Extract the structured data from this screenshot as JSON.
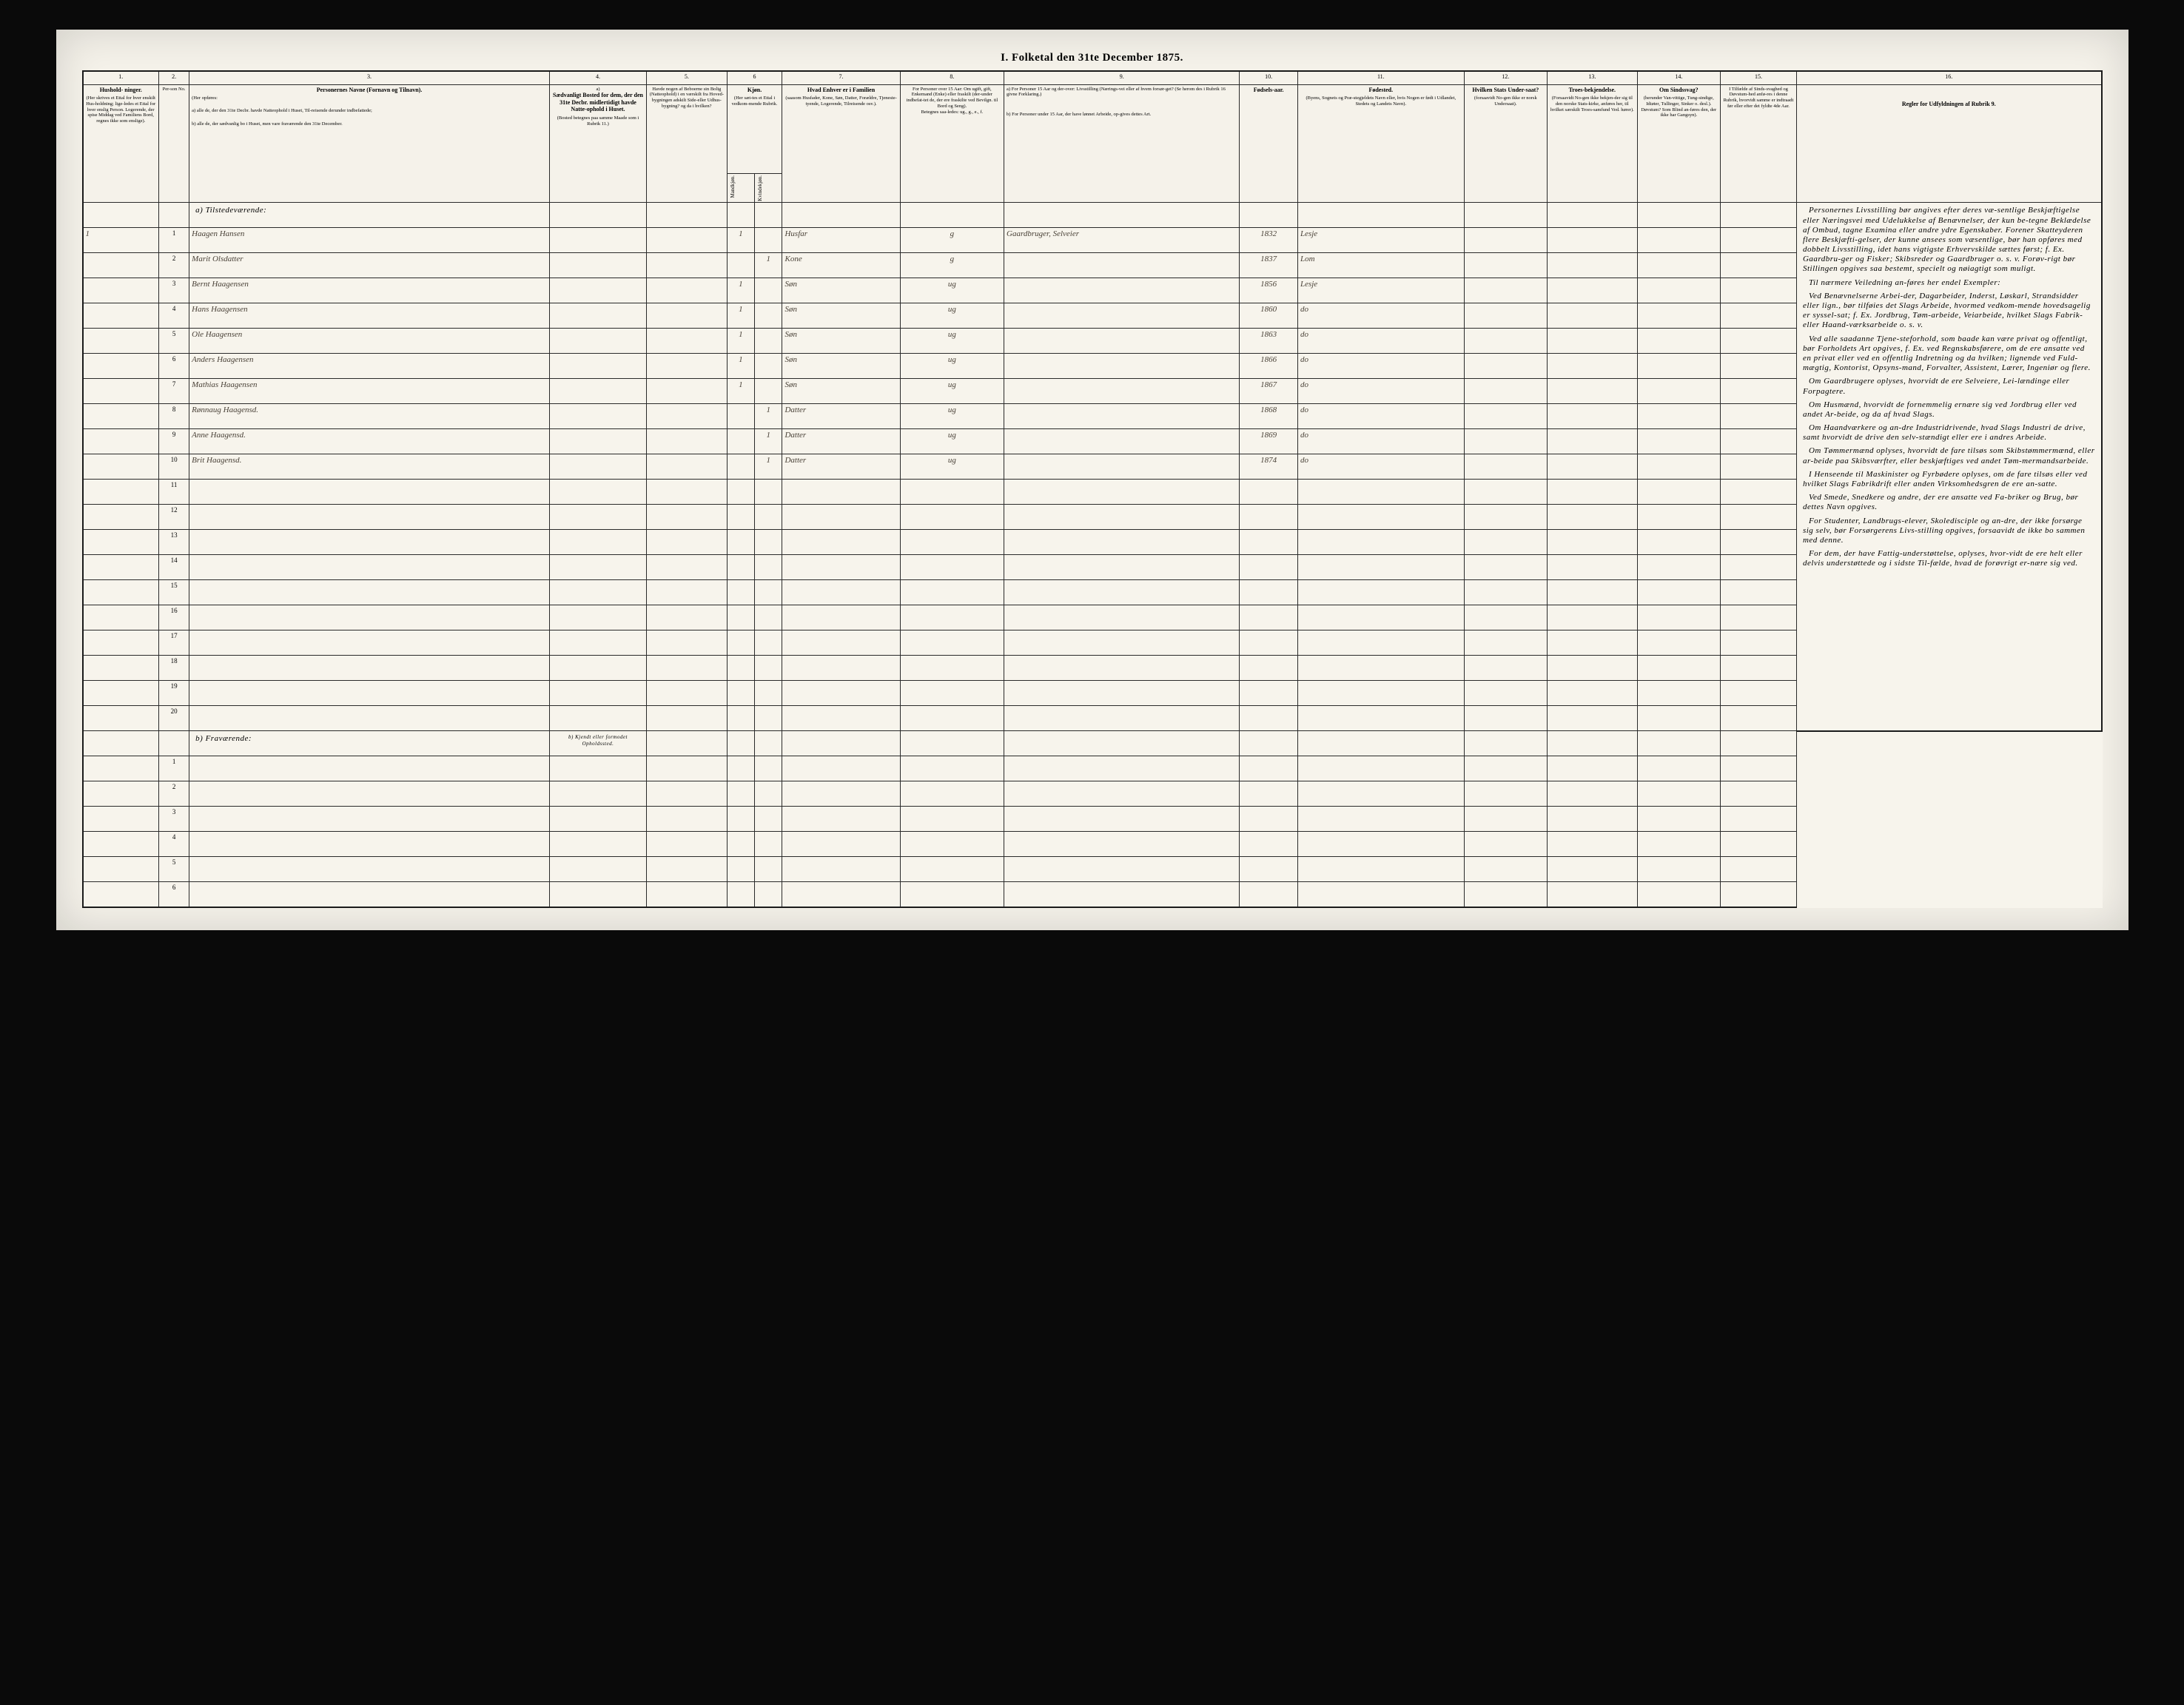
{
  "title": "I.  Folketal den 31te December 1875.",
  "columns": {
    "c1": {
      "num": "1.",
      "head": "Hushold-\nninger.",
      "sub": "(Her skrives et Ettal for hver enskilt Hus-holdning; lige-ledes et Ettal for hver enslig Person. Logerende, der spise Middag ved Familiens Bord, regnes ikke som enslige)."
    },
    "c2": {
      "num": "2.",
      "head": "",
      "sub": "Per-son No."
    },
    "c3": {
      "num": "3.",
      "head": "Personernes Navne (Fornavn og Tilnavn).",
      "sub_a": "a) alle de, der den 31te Decbr. havde Natteophold i Huset, Til-reisende derunder indbefattede;",
      "sub_b": "b) alle de, der sædvanlig bo i Huset, men vare fraværende den 31te December.",
      "sub_intro": "(Her opføres:"
    },
    "c4": {
      "num": "4.",
      "head": "Sædvanligt Bosted for dem, der den 31te Decbr. midlertidigt havde Natte-ophold i Huset.",
      "sub": "(Bosted betegnes paa samme Maade som i Rubrik 11.)",
      "sub_b": "b) Kjendt eller formodet Opholdssted."
    },
    "c5": {
      "num": "5.",
      "head": "Havde nogen af Beboerne sin Bolig (Natteophold) i en værskilt fra Hoved-bygningen adskilt Side-eller Udhus-bygning? og da i hvilken?"
    },
    "c6": {
      "num": "6",
      "head": "Kjøn.",
      "sub": "(Her sæt-tes et Ettal i vedkom-mende Rubrik."
    },
    "c6a": "Mandkjøn.",
    "c6b": "Kvindekjøn.",
    "c7": {
      "num": "7.",
      "head": "Hvad Enhver er i Familien",
      "sub": "(saasom Husfader, Kone, Søn, Datter, Forældre, Tjeneste-tyende, Logerende, Tilreisende osv.)."
    },
    "c8": {
      "num": "8.",
      "head": "For Personer over 15 Aar: Om ugift, gift, Enkemand (Enke) eller fraskilt (der-under indbefat-tet de, der ere fraskilte ved Bevilgn. til Bord og Seng).",
      "sub": "Betegnes saa-ledes: ug., g., e., f."
    },
    "c9": {
      "num": "9.",
      "head_a": "a) For Personer 15 Aar og der-over: Livsstilling (Nærings-vei eller af hvem forsør-get? (Se herom des i Rubrik 16 givne Forklaring.)",
      "head_b": "b) For Personer under 15 Aar, der have lønnet Arbeide, op-gives dettes Art."
    },
    "c10": {
      "num": "10.",
      "head": "Fødsels-aar."
    },
    "c11": {
      "num": "11.",
      "head": "Fødested.",
      "sub": "(Byens, Sognets og Præ-stegjeldets Navn eller, hvis Nogen er født i Udlandet, Stedets og Landets Navn)."
    },
    "c12": {
      "num": "12.",
      "head": "Hvilken Stats Under-saat?",
      "sub": "(forsaavidt No-gen ikke er norsk Undersaat)."
    },
    "c13": {
      "num": "13.",
      "head": "Troes-bekjendelse.",
      "sub": "(Forsaavidt No-gen ikke bekjen-der sig til den norske Stats-kirke, anføres her, til hvilket særskilt Troes-samfund Ved. hører)."
    },
    "c14": {
      "num": "14.",
      "head": "Om Sindssvag?",
      "sub": "(herunder Van-vittige, Tung-sindige, Idiøter, Tullinger, Sinker o. desl.). Døvstum? Som Blind an-føres den, der ikke har Gangsyn)."
    },
    "c15": {
      "num": "15.",
      "head": "I Tilfælde af Sinds-svaghed og Døvstum-hed anfø-res i denne Rubrik, hvorvidt samme er indtraadt før eller efter det fyldte 4de Aar."
    },
    "c16": {
      "num": "16.",
      "head": "Regler for Udfyldningen af Rubrik 9."
    }
  },
  "section_a": "a) Tilstedeværende:",
  "section_b": "b) Fraværende:",
  "rows_a": [
    {
      "n": "1",
      "hh": "1",
      "name": "Haagen Hansen",
      "m": "1",
      "k": "",
      "fam": "Husfar",
      "civ": "g",
      "liv": "Gaardbruger, Selveier",
      "aar": "1832",
      "sted": "Lesje"
    },
    {
      "n": "2",
      "hh": "",
      "name": "Marit Olsdatter",
      "m": "",
      "k": "1",
      "fam": "Kone",
      "civ": "g",
      "liv": "",
      "aar": "1837",
      "sted": "Lom"
    },
    {
      "n": "3",
      "hh": "",
      "name": "Bernt Haagensen",
      "m": "1",
      "k": "",
      "fam": "Søn",
      "civ": "ug",
      "liv": "",
      "aar": "1856",
      "sted": "Lesje"
    },
    {
      "n": "4",
      "hh": "",
      "name": "Hans Haagensen",
      "m": "1",
      "k": "",
      "fam": "Søn",
      "civ": "ug",
      "liv": "",
      "aar": "1860",
      "sted": "do"
    },
    {
      "n": "5",
      "hh": "",
      "name": "Ole Haagensen",
      "m": "1",
      "k": "",
      "fam": "Søn",
      "civ": "ug",
      "liv": "",
      "aar": "1863",
      "sted": "do"
    },
    {
      "n": "6",
      "hh": "",
      "name": "Anders Haagensen",
      "m": "1",
      "k": "",
      "fam": "Søn",
      "civ": "ug",
      "liv": "",
      "aar": "1866",
      "sted": "do"
    },
    {
      "n": "7",
      "hh": "",
      "name": "Mathias Haagensen",
      "m": "1",
      "k": "",
      "fam": "Søn",
      "civ": "ug",
      "liv": "",
      "aar": "1867",
      "sted": "do"
    },
    {
      "n": "8",
      "hh": "",
      "name": "Rønnaug Haagensd.",
      "m": "",
      "k": "1",
      "fam": "Datter",
      "civ": "ug",
      "liv": "",
      "aar": "1868",
      "sted": "do"
    },
    {
      "n": "9",
      "hh": "",
      "name": "Anne Haagensd.",
      "m": "",
      "k": "1",
      "fam": "Datter",
      "civ": "ug",
      "liv": "",
      "aar": "1869",
      "sted": "do"
    },
    {
      "n": "10",
      "hh": "",
      "name": "Brit Haagensd.",
      "m": "",
      "k": "1",
      "fam": "Datter",
      "civ": "ug",
      "liv": "",
      "aar": "1874",
      "sted": "do"
    },
    {
      "n": "11"
    },
    {
      "n": "12"
    },
    {
      "n": "13"
    },
    {
      "n": "14"
    },
    {
      "n": "15"
    },
    {
      "n": "16"
    },
    {
      "n": "17"
    },
    {
      "n": "18"
    },
    {
      "n": "19"
    },
    {
      "n": "20"
    }
  ],
  "rows_b": [
    {
      "n": "1"
    },
    {
      "n": "2"
    },
    {
      "n": "3"
    },
    {
      "n": "4"
    },
    {
      "n": "5"
    },
    {
      "n": "6"
    }
  ],
  "instructions": {
    "p1": "Personernes Livsstilling bør angives efter deres væ-sentlige Beskjæftigelse eller Næringsvei med Udelukkelse af Benævnelser, der kun be-tegne Beklædelse af Ombud, tagne Examina eller andre ydre Egenskaber. Forener Skatteyderen flere Beskjæfti-gelser, der kunne ansees som væsentlige, bør han opføres med dobbelt Livsstilling, idet hans vigtigste Erhvervskilde sættes først; f. Ex. Gaardbru-ger og Fisker; Skibsreder og Gaardbruger o. s. v. Forøv-rigt bør Stillingen opgives saa bestemt, specielt og nøiagtigt som muligt.",
    "p2": "Til nærmere Veiledning an-føres her endel Exempler:",
    "p3": "Ved Benævnelserne Arbei-der, Dagarbeider, Inderst, Løskarl, Strandsidder eller lign., bør tilføies det Slags Arbeide, hvormed vedkom-mende hovedsagelig er syssel-sat; f. Ex. Jordbrug, Tøm-arbeide, Veiarbeide, hvilket Slags Fabrik- eller Haand-værksarbeide o. s. v.",
    "p4": "Ved alle saadanne Tjene-steforhold, som baade kan være privat og offentligt, bør Forholdets Art opgives, f. Ex. ved Regnskabsførere, om de ere ansatte ved en privat eller ved en offentlig Indretning og da hvilken; lignende ved Fuld-mægtig, Kontorist, Opsyns-mand, Forvalter, Assistent, Lærer, Ingeniør og flere.",
    "p5": "Om Gaardbrugere oplyses, hvorvidt de ere Selveiere, Lei-lændinge eller Forpagtere.",
    "p6": "Om Husmænd, hvorvidt de fornemmelig ernære sig ved Jordbrug eller ved andet Ar-beide, og da af hvad Slags.",
    "p7": "Om Haandværkere og an-dre Industridrivende, hvad Slags Industri de drive, samt hvorvidt de drive den selv-stændigt eller ere i andres Arbeide.",
    "p8": "Om Tømmermænd oplyses, hvorvidt de fare tilsøs som Skibstømmermænd, eller ar-beide paa Skibsværfter, eller beskjæftiges ved andet Tøm-mermandsarbeide.",
    "p9": "I Henseende til Maskinister og Fyrbødere oplyses, om de fare tilsøs eller ved hvilket Slags Fabrikdrift eller anden Virksomhedsgren de ere an-satte.",
    "p10": "Ved Smede, Snedkere og andre, der ere ansatte ved Fa-briker og Brug, bør dettes Navn opgives.",
    "p11": "For Studenter, Landbrugs-elever, Skoledisciple og an-dre, der ikke forsørge sig selv, bør Forsørgerens Livs-stilling opgives, forsaavidt de ikke bo sammen med denne.",
    "p12": "For dem, der have Fattig-understøttelse, oplyses, hvor-vidt de ere helt eller delvis understøttede og i sidste Til-fælde, hvad de forøvrigt er-nære sig ved."
  }
}
